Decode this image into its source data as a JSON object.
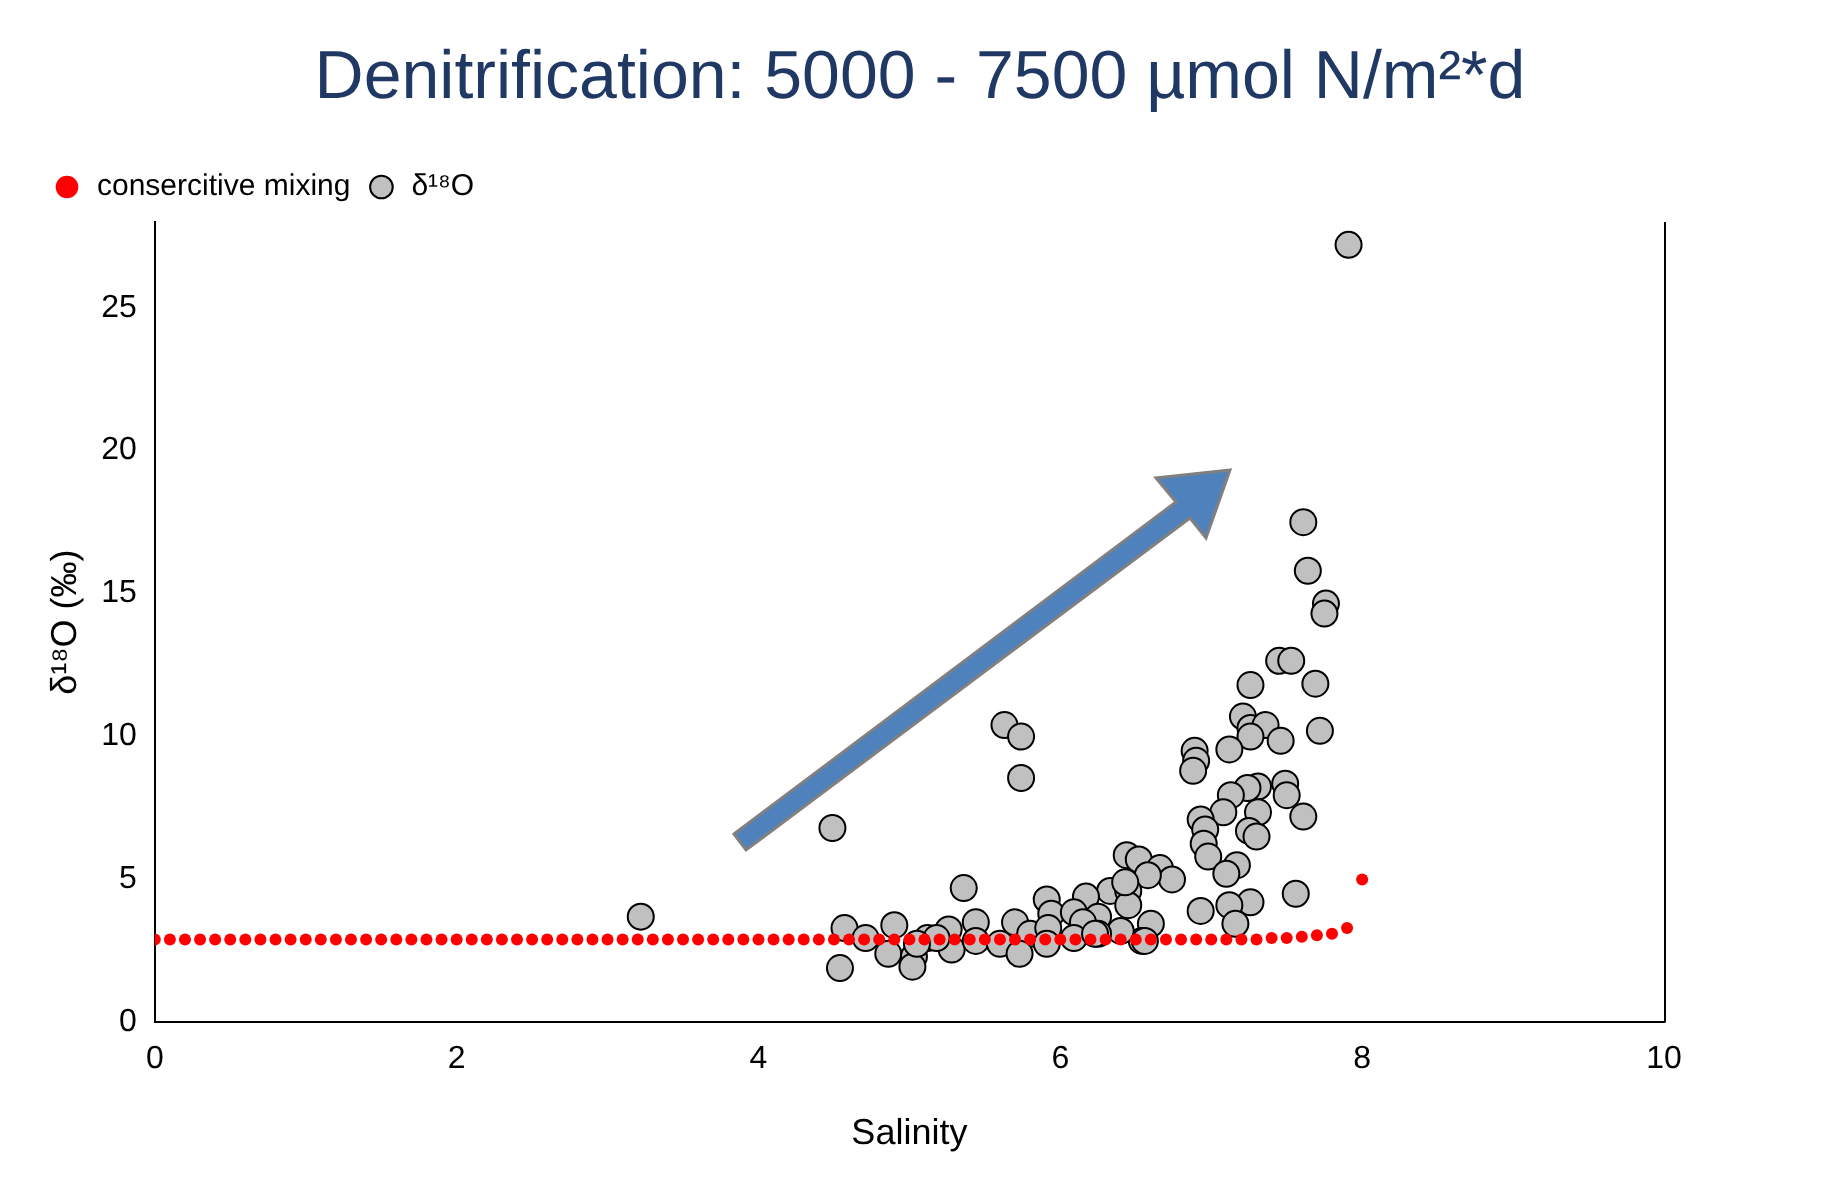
{
  "chart_data": {
    "type": "scatter",
    "title": "Denitrification: 5000 - 7500 µmol N/m²*d",
    "xlabel": "Salinity",
    "ylabel": "δ¹⁸O (‰)",
    "xlim": [
      0,
      10
    ],
    "xticks": [
      0,
      2,
      4,
      6,
      8,
      10
    ],
    "ylim": [
      0,
      28
    ],
    "yticks": [
      0,
      5,
      10,
      15,
      20,
      25
    ],
    "grid": false,
    "legend": "top left",
    "marker": "circle",
    "series": [
      {
        "name": "δ¹⁸O",
        "color": "#c0c0c0",
        "x": [
          3.22,
          4.49,
          4.54,
          4.57,
          5.63,
          5.74,
          5.74,
          5.36,
          7.61,
          7.64,
          7.76,
          7.75,
          7.45,
          7.53,
          7.26,
          7.69,
          7.72,
          7.21,
          7.26,
          7.36,
          7.26,
          7.46,
          6.89,
          6.9,
          6.88,
          7.12,
          7.49,
          7.31,
          7.24,
          7.5,
          7.13,
          7.08,
          7.31,
          7.61,
          6.93,
          6.96,
          7.25,
          7.3,
          6.95,
          6.98,
          7.17,
          7.1,
          6.44,
          6.52,
          6.66,
          6.74,
          6.58,
          6.33,
          6.45,
          6.45,
          6.17,
          5.91,
          5.94,
          6.09,
          6.25,
          7.56,
          7.26,
          7.12,
          6.93,
          7.16,
          6.6,
          6.54,
          6.4,
          6.25,
          6.15,
          5.7,
          5.8,
          5.92,
          5.44,
          5.26,
          5.28,
          5.12,
          4.9,
          4.86,
          5.03,
          5.02,
          4.71,
          5.44,
          5.6,
          5.73,
          5.91,
          6.09,
          6.23,
          6.56,
          6.43,
          5.18,
          5.05,
          7.91
        ],
        "values": [
          3.7,
          6.8,
          1.9,
          3.3,
          10.4,
          10.0,
          8.55,
          4.7,
          17.5,
          15.8,
          14.65,
          14.3,
          12.65,
          12.65,
          11.8,
          11.85,
          10.2,
          10.7,
          10.3,
          10.4,
          10.0,
          9.85,
          9.5,
          9.15,
          8.8,
          9.55,
          8.35,
          8.25,
          8.2,
          7.95,
          7.95,
          7.35,
          7.35,
          7.2,
          7.1,
          6.75,
          6.7,
          6.5,
          6.25,
          5.8,
          5.5,
          5.2,
          5.85,
          5.7,
          5.4,
          5.0,
          5.15,
          4.6,
          4.6,
          4.1,
          4.4,
          4.3,
          3.8,
          3.85,
          3.7,
          4.5,
          4.2,
          4.1,
          3.9,
          3.45,
          3.45,
          2.85,
          3.2,
          3.1,
          3.5,
          3.5,
          3.1,
          3.3,
          3.5,
          3.25,
          2.55,
          2.95,
          3.4,
          2.4,
          2.3,
          1.95,
          2.95,
          2.85,
          2.75,
          2.4,
          2.75,
          2.95,
          3.1,
          2.85,
          4.9,
          2.95,
          2.75,
          27.2
        ]
      },
      {
        "name": "consercitive mixing",
        "color": "#ff0000",
        "x": [
          0,
          0.1,
          0.2,
          0.3,
          0.4,
          0.5,
          0.6,
          0.7,
          0.8,
          0.9,
          1,
          1.1,
          1.2,
          1.3,
          1.4,
          1.5,
          1.6,
          1.7,
          1.8,
          1.9,
          2,
          2.1,
          2.2,
          2.3,
          2.4,
          2.5,
          2.6,
          2.7,
          2.8,
          2.9,
          3,
          3.1,
          3.2,
          3.3,
          3.4,
          3.5,
          3.6,
          3.7,
          3.8,
          3.9,
          4,
          4.1,
          4.2,
          4.3,
          4.4,
          4.5,
          4.6,
          4.7,
          4.8,
          4.9,
          5,
          5.1,
          5.2,
          5.3,
          5.4,
          5.5,
          5.6,
          5.7,
          5.8,
          5.9,
          6,
          6.1,
          6.2,
          6.3,
          6.4,
          6.5,
          6.6,
          6.7,
          6.8,
          6.9,
          7,
          7.1,
          7.2,
          7.3,
          7.4,
          7.5,
          7.6,
          7.7,
          7.8,
          7.9,
          8
        ],
        "values": [
          2.9,
          2.9,
          2.9,
          2.9,
          2.9,
          2.9,
          2.9,
          2.9,
          2.9,
          2.9,
          2.9,
          2.9,
          2.9,
          2.9,
          2.9,
          2.9,
          2.9,
          2.9,
          2.9,
          2.9,
          2.9,
          2.9,
          2.9,
          2.9,
          2.9,
          2.9,
          2.9,
          2.9,
          2.9,
          2.9,
          2.9,
          2.9,
          2.9,
          2.9,
          2.9,
          2.9,
          2.9,
          2.9,
          2.9,
          2.9,
          2.9,
          2.9,
          2.9,
          2.9,
          2.9,
          2.9,
          2.9,
          2.9,
          2.9,
          2.9,
          2.9,
          2.9,
          2.9,
          2.9,
          2.9,
          2.9,
          2.9,
          2.9,
          2.9,
          2.9,
          2.9,
          2.9,
          2.9,
          2.9,
          2.9,
          2.9,
          2.9,
          2.9,
          2.9,
          2.9,
          2.9,
          2.9,
          2.9,
          2.9,
          2.95,
          2.95,
          3.0,
          3.05,
          3.1,
          3.3,
          5.0
        ]
      }
    ]
  }
}
